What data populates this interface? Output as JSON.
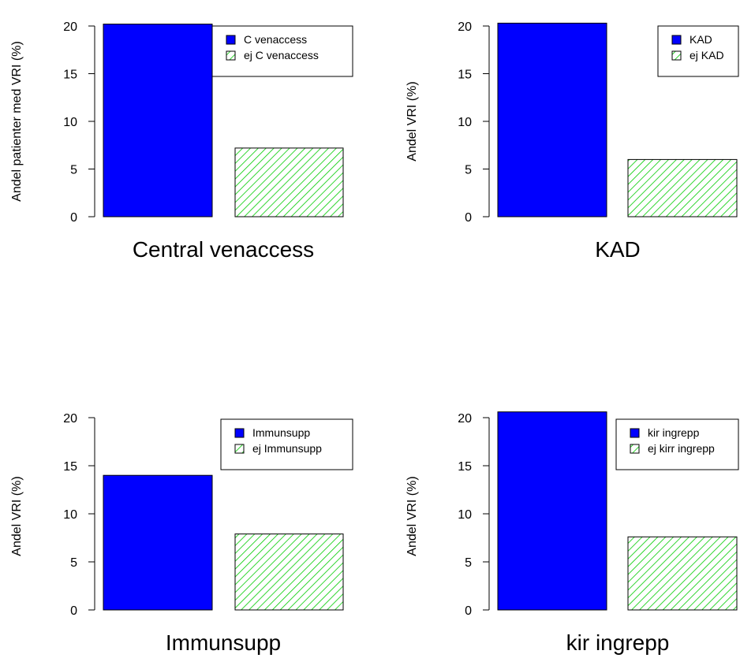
{
  "chart_data": [
    {
      "type": "bar",
      "title": "Central venaccess",
      "ylabel": "Andel patienter med VRI (%)",
      "ylim": [
        0,
        20
      ],
      "yticks": [
        "0",
        "5",
        "10",
        "15",
        "20"
      ],
      "categories": [
        "C venaccess",
        "ej C venaccess"
      ],
      "values": [
        20.2,
        7.2
      ],
      "legend": {
        "position": "top-right",
        "entries": [
          "C venaccess",
          "ej C venaccess"
        ]
      }
    },
    {
      "type": "bar",
      "title": "KAD",
      "ylabel": "Andel VRI (%)",
      "ylim": [
        0,
        20
      ],
      "yticks": [
        "0",
        "5",
        "10",
        "15",
        "20"
      ],
      "categories": [
        "KAD",
        "ej KAD"
      ],
      "values": [
        20.3,
        6.0
      ],
      "legend": {
        "position": "top-right",
        "entries": [
          "KAD",
          "ej KAD"
        ]
      }
    },
    {
      "type": "bar",
      "title": "Immunsupp",
      "ylabel": "Andel VRI (%)",
      "ylim": [
        0,
        20
      ],
      "yticks": [
        "0",
        "5",
        "10",
        "15",
        "20"
      ],
      "categories": [
        "Immunsupp",
        "ej Immunsupp"
      ],
      "values": [
        14.0,
        7.9
      ],
      "legend": {
        "position": "top-right",
        "entries": [
          "Immunsupp",
          "ej Immunsupp"
        ]
      }
    },
    {
      "type": "bar",
      "title": "kir ingrepp",
      "ylabel": "Andel VRI (%)",
      "ylim": [
        0,
        20
      ],
      "yticks": [
        "0",
        "5",
        "10",
        "15",
        "20"
      ],
      "categories": [
        "kir ingrepp",
        "ej kirr ingrepp"
      ],
      "values": [
        20.6,
        7.6
      ],
      "legend": {
        "position": "top-right",
        "entries": [
          "kir ingrepp",
          "ej kirr ingrepp"
        ]
      }
    }
  ],
  "colors": {
    "bar_primary": "#0000ff",
    "hatch_fill": "#ffffff",
    "hatch_line": "#00cc00",
    "outline": "#000000"
  }
}
